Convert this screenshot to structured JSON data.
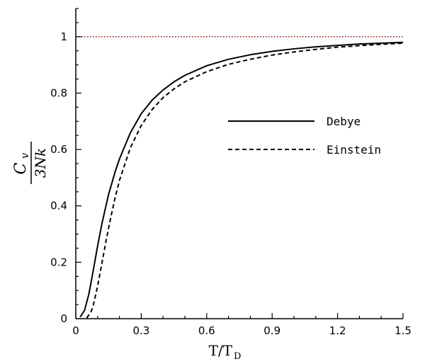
{
  "chart_data": {
    "type": "line",
    "xlabel": {
      "main": "T/T",
      "sub": "D"
    },
    "ylabel": {
      "numerator": "C",
      "numerator_sub": "v",
      "denominator": "3Nk"
    },
    "xlim": [
      0,
      1.5
    ],
    "ylim": [
      0,
      1.1
    ],
    "xticks": [
      0,
      0.3,
      0.6,
      0.9,
      1.2,
      1.5
    ],
    "xtick_labels": [
      "0",
      "0.3",
      "0.6",
      "0.9",
      "1.2",
      "1.5"
    ],
    "yticks": [
      0,
      0.2,
      0.4,
      0.6,
      0.8,
      1
    ],
    "ytick_labels": [
      "0",
      "0.2",
      "0.4",
      "0.6",
      "0.8",
      "1"
    ],
    "grid": false,
    "legend_position": "right-middle",
    "reference_line": {
      "y": 1,
      "style": "dotted",
      "color": "#8b0000"
    },
    "series": [
      {
        "name": "Debye",
        "style": "solid",
        "color": "#000000",
        "x": [
          0.02,
          0.04,
          0.06,
          0.08,
          0.1,
          0.12,
          0.15,
          0.18,
          0.2,
          0.25,
          0.3,
          0.35,
          0.4,
          0.45,
          0.5,
          0.6,
          0.7,
          0.8,
          0.9,
          1.0,
          1.1,
          1.2,
          1.3,
          1.4,
          1.5
        ],
        "y": [
          0.0062,
          0.0292,
          0.0874,
          0.171,
          0.258,
          0.338,
          0.44,
          0.52,
          0.566,
          0.659,
          0.727,
          0.775,
          0.811,
          0.84,
          0.863,
          0.897,
          0.92,
          0.936,
          0.948,
          0.957,
          0.964,
          0.969,
          0.974,
          0.977,
          0.98
        ]
      },
      {
        "name": "Einstein",
        "style": "dashed",
        "color": "#000000",
        "x": [
          0.05,
          0.07,
          0.08,
          0.1,
          0.12,
          0.14,
          0.16,
          0.18,
          0.2,
          0.25,
          0.3,
          0.35,
          0.4,
          0.45,
          0.5,
          0.6,
          0.7,
          0.8,
          0.9,
          1.0,
          1.1,
          1.2,
          1.3,
          1.4,
          1.5
        ],
        "y": [
          0.0025,
          0.024,
          0.047,
          0.115,
          0.198,
          0.281,
          0.358,
          0.428,
          0.49,
          0.606,
          0.685,
          0.742,
          0.784,
          0.815,
          0.84,
          0.876,
          0.902,
          0.92,
          0.935,
          0.946,
          0.955,
          0.963,
          0.968,
          0.973,
          0.977
        ]
      }
    ]
  }
}
